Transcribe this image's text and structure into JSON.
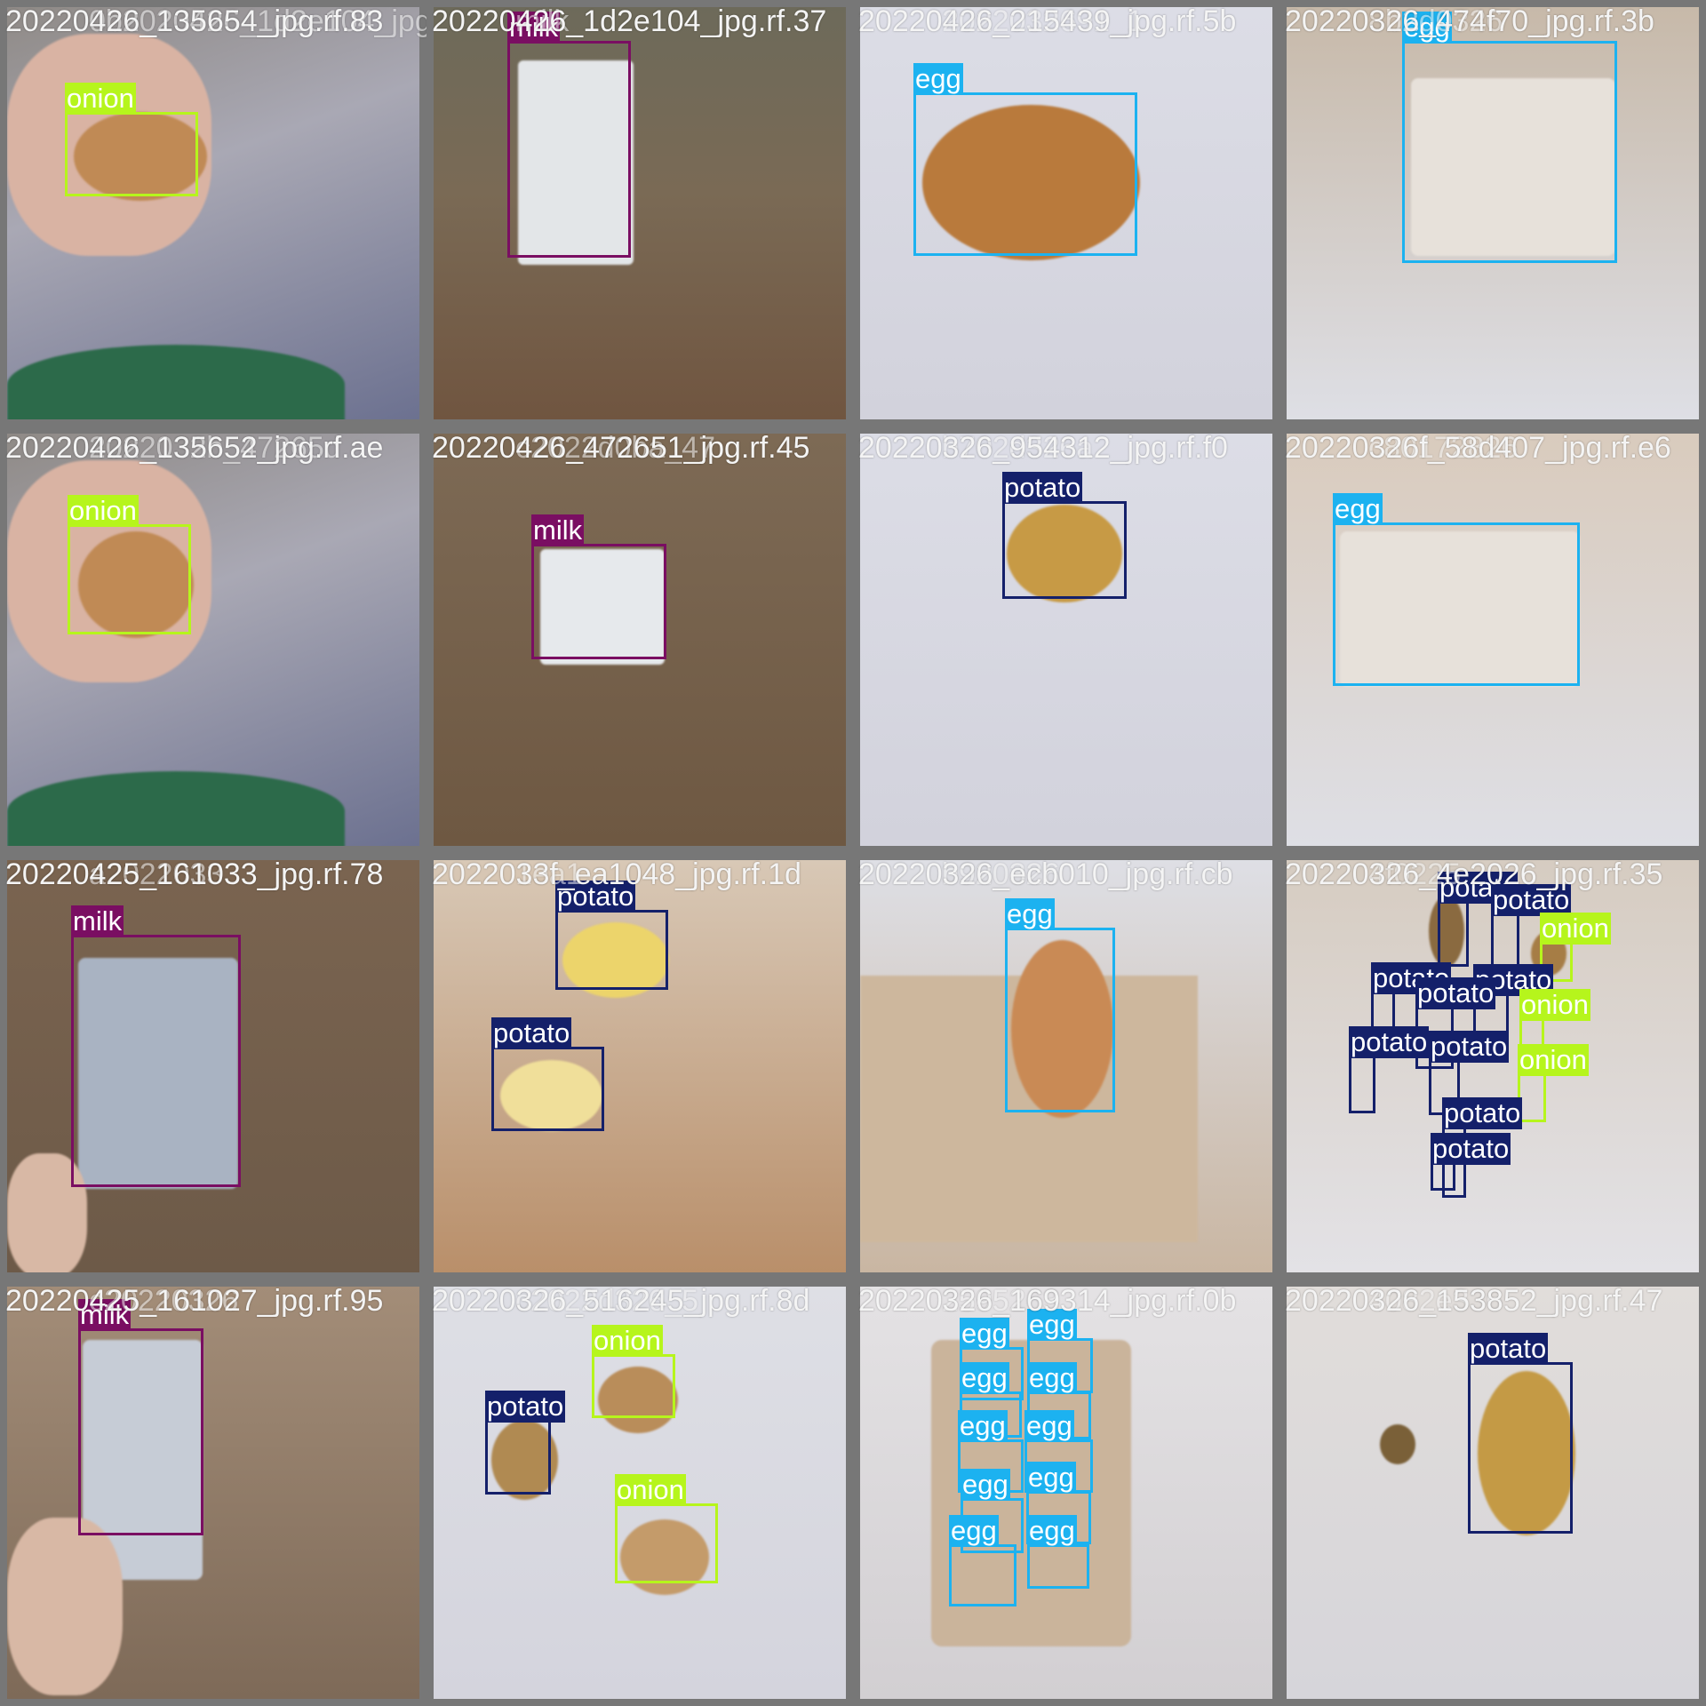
{
  "colors": {
    "onion": "#b6f51c",
    "milk": "#7a0e62",
    "egg": "#1cb2f0",
    "potato": "#14206a",
    "tile_border": "#777777"
  },
  "tiles": [
    {
      "title": "20220426_135654_jpg.rf.83",
      "ghost": "0b2020426_1d2e104_jpg.rf.37",
      "detections": [
        {
          "label": "onion"
        }
      ]
    },
    {
      "title": "20220426_1d2e104_jpg.rf.37",
      "ghost": "milk",
      "detections": [
        {
          "label": "milk"
        }
      ]
    },
    {
      "title": "20220426_215439_jpg.rf.5b",
      "ghost": "2022032691_1",
      "detections": [
        {
          "label": "egg"
        }
      ]
    },
    {
      "title": "20220326_474f70_jpg.rf.3b",
      "ghost": "8b2d0326",
      "detections": [
        {
          "label": "egg"
        }
      ]
    },
    {
      "title": "20220426_135652_jpg.rf.ae",
      "ghost": "2022032b_47265d",
      "detections": [
        {
          "label": "onion"
        }
      ]
    },
    {
      "title": "20220426_472651_jpg.rf.45",
      "ghost": "c2022d0ba_47",
      "detections": [
        {
          "label": "milk"
        }
      ]
    },
    {
      "title": "20220326_954312_jpg.rf.f0",
      "ghost": "b702d326a",
      "detections": [
        {
          "label": "potato"
        }
      ]
    },
    {
      "title": "20220326f_58d407_jpg.rf.e6",
      "ghost": "c80172826",
      "detections": [
        {
          "label": "egg"
        }
      ]
    },
    {
      "title": "20220425_161033_jpg.rf.78",
      "ghost": "a2022033",
      "detections": [
        {
          "label": "milk"
        }
      ]
    },
    {
      "title": "2022033f_ea1048_jpg.rf.1d",
      "ghost": "1ea1",
      "detections": [
        {
          "label": "potato"
        },
        {
          "label": "potato"
        }
      ]
    },
    {
      "title": "20220326_ecb010_jpg.rf.cb",
      "ghost": "b920326",
      "detections": [
        {
          "label": "egg"
        }
      ]
    },
    {
      "title": "20220326_4e2026_jpg.rf.35",
      "ghost": "4f0225",
      "detections": [
        {
          "label": "potato"
        },
        {
          "label": "potato"
        },
        {
          "label": "onion"
        },
        {
          "label": "potato"
        },
        {
          "label": "potato"
        },
        {
          "label": "potato"
        },
        {
          "label": "onion"
        },
        {
          "label": "potato"
        },
        {
          "label": "potato"
        },
        {
          "label": "onion"
        },
        {
          "label": "potato"
        },
        {
          "label": "potato"
        }
      ]
    },
    {
      "title": "20220425_161027_jpg.rf.95",
      "ghost": "c20220326",
      "detections": [
        {
          "label": "milk"
        }
      ]
    },
    {
      "title": "20220326_516245_jpg.rf.8d",
      "ghost": "c2022d326_5",
      "detections": [
        {
          "label": "onion"
        },
        {
          "label": "potato"
        },
        {
          "label": "onion"
        }
      ]
    },
    {
      "title": "20220326_169314_jpg.rf.0b",
      "ghost": "2595263",
      "detections": [
        {
          "label": "egg"
        },
        {
          "label": "egg"
        },
        {
          "label": "egg"
        },
        {
          "label": "egg"
        },
        {
          "label": "egg"
        },
        {
          "label": "egg"
        },
        {
          "label": "egg"
        },
        {
          "label": "egg"
        },
        {
          "label": "egg"
        },
        {
          "label": "egg"
        }
      ]
    },
    {
      "title": "20220326_153852_jpg.rf.47",
      "ghost": "4082e336",
      "detections": [
        {
          "label": "potato"
        }
      ]
    }
  ]
}
